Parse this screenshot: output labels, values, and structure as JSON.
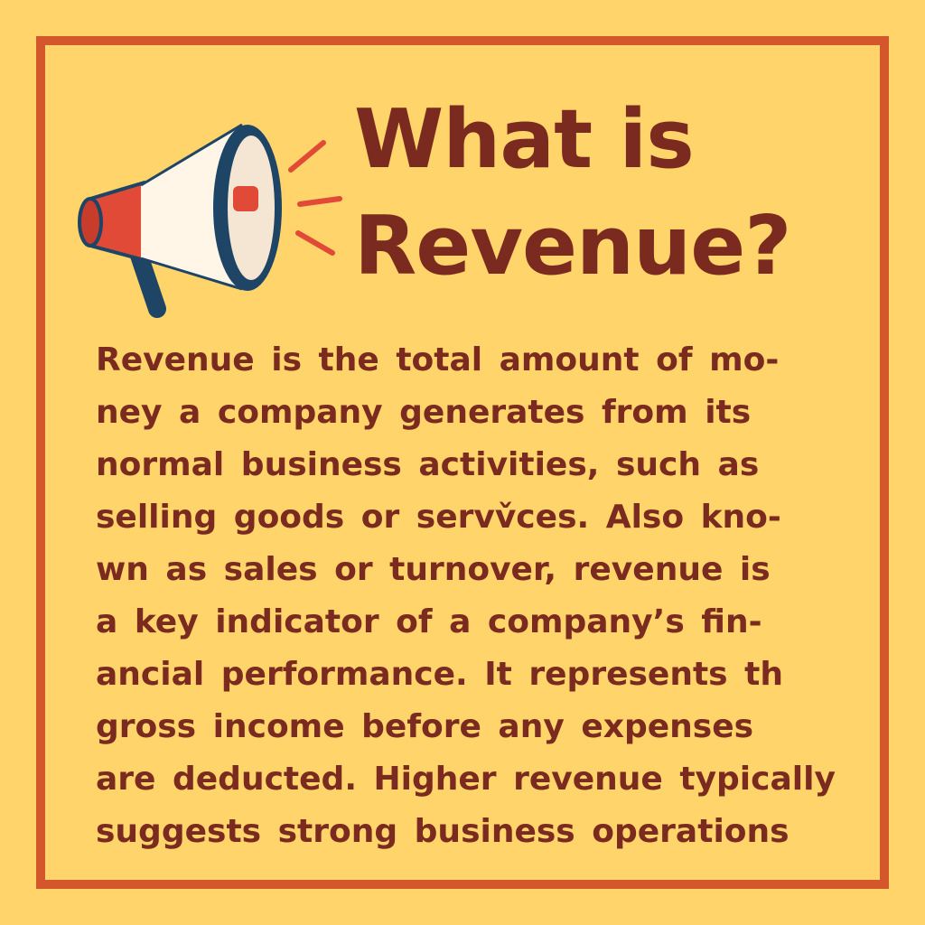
{
  "title": {
    "line1": "What is",
    "line2": "Revenue?"
  },
  "body": {
    "lines": [
      "Revenue is the total amount of mo-",
      "ney a company generates from its",
      "normal business activities, such as",
      "selling goods or servv̌ces. Also kno-",
      "wn as sales or turnover, revenue is",
      "a key indicator of a company’s fin-",
      "ancial performance. It represents th",
      "gross income before any expenses",
      "are deducted. Higher revenue typically",
      "suggests strong business operations"
    ]
  },
  "icon": "megaphone-icon",
  "colors": {
    "background": "#FFD46B",
    "border": "#D4572B",
    "text": "#7A2A1E",
    "megaphone_red": "#E04A36",
    "megaphone_navy": "#1E4466",
    "megaphone_white": "#FFF6E8"
  }
}
